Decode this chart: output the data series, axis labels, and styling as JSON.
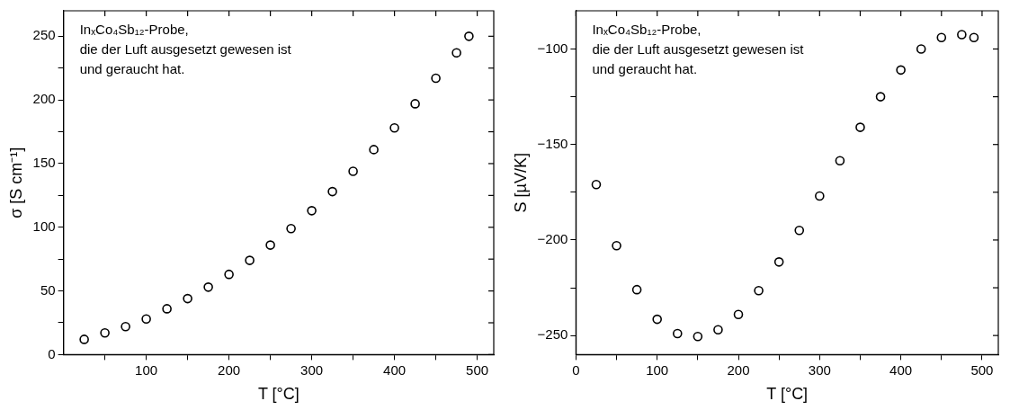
{
  "chart_data": [
    {
      "type": "scatter",
      "xlabel": "T [°C]",
      "ylabel": "σ [S cm⁻¹]",
      "annotations": [
        "InₓCo₄Sb₁₂-Probe,\ndie der Luft ausgesetzt gewesen ist\nund geraucht hat."
      ],
      "x": [
        25,
        50,
        75,
        100,
        125,
        150,
        175,
        200,
        225,
        250,
        275,
        300,
        325,
        350,
        375,
        400,
        425,
        450,
        475,
        490
      ],
      "series": [
        {
          "color": "#000000",
          "values": [
            12,
            17,
            22,
            28,
            36,
            44,
            53,
            63,
            74,
            86,
            99,
            113,
            128,
            144,
            161,
            178,
            197,
            217,
            237,
            250
          ]
        }
      ],
      "xlim": [
        0,
        520
      ],
      "xticks": [
        {
          "value": 50,
          "label": null
        },
        100,
        {
          "value": 150,
          "label": null
        },
        200,
        {
          "value": 250,
          "label": null
        },
        300,
        {
          "value": 350,
          "label": null
        },
        400,
        {
          "value": 450,
          "label": null
        },
        500
      ],
      "ylim": [
        0,
        270
      ],
      "yticks": [
        0,
        {
          "value": 25,
          "label": null
        },
        50,
        {
          "value": 75,
          "label": null
        },
        100,
        {
          "value": 125,
          "label": null
        },
        150,
        {
          "value": 175,
          "label": null
        },
        200,
        {
          "value": 225,
          "label": null
        },
        250
      ],
      "grid": false,
      "legend": false,
      "marker": "circle"
    },
    {
      "type": "scatter",
      "xlabel": "T [°C]",
      "ylabel": "S [µV/K]",
      "annotations": [
        "InₓCo₄Sb₁₂-Probe,\ndie der Luft ausgesetzt gewesen ist\nund geraucht hat."
      ],
      "x": [
        25,
        50,
        75,
        100,
        125,
        150,
        175,
        200,
        225,
        250,
        275,
        300,
        325,
        350,
        375,
        400,
        425,
        450,
        475,
        490
      ],
      "series": [
        {
          "color": "#000000",
          "values": [
            -171,
            -203,
            -226,
            -241.5,
            -249,
            -250.5,
            -247,
            -239,
            -226.5,
            -211.5,
            -195,
            -177,
            -158.5,
            -141,
            -125,
            -111,
            -100,
            -94,
            -92.5,
            -94
          ]
        }
      ],
      "xlim": [
        0,
        520
      ],
      "xticks": [
        0,
        {
          "value": 50,
          "label": null
        },
        100,
        {
          "value": 150,
          "label": null
        },
        200,
        {
          "value": 250,
          "label": null
        },
        300,
        {
          "value": 350,
          "label": null
        },
        400,
        {
          "value": 450,
          "label": null
        },
        500
      ],
      "ylim": [
        -260,
        -80
      ],
      "yticks": [
        -250,
        {
          "value": -225,
          "label": null
        },
        -200,
        {
          "value": -175,
          "label": null
        },
        -150,
        {
          "value": -125,
          "label": null
        },
        -100
      ],
      "grid": false,
      "legend": false,
      "marker": "circle"
    }
  ]
}
